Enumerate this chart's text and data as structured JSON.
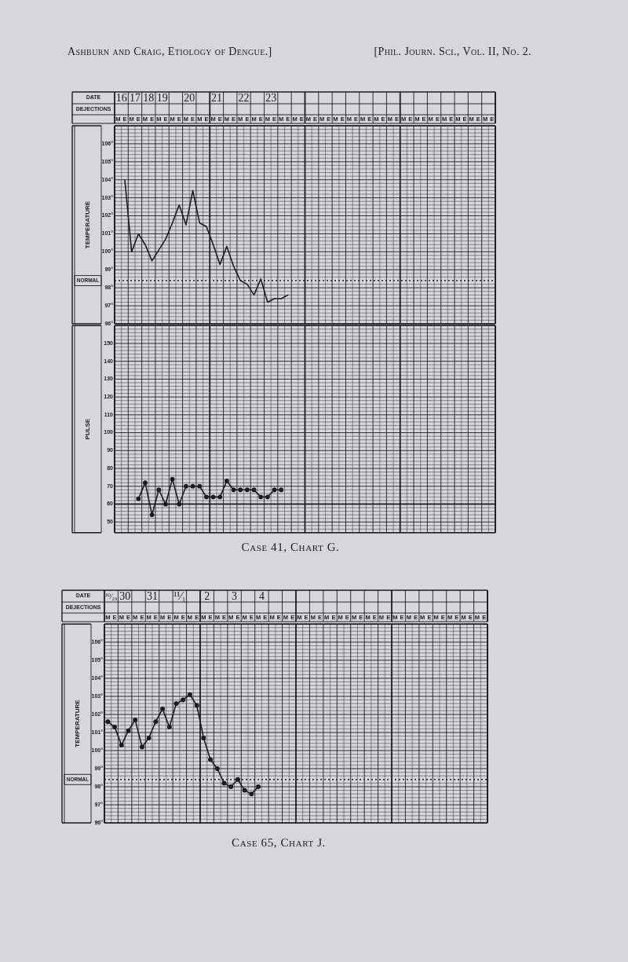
{
  "chart_data": [
    {
      "type": "line",
      "title": "Case 41, Chart G.",
      "ylabel": "TEMPERATURE",
      "annotations": [
        "Ashburn and Craig, Etiology of Dengue.]",
        "[Phil. Journ. Sci., Vol. II, No. 2.",
        "DATE",
        "16",
        "17",
        "18",
        "19",
        "20",
        "21",
        "22",
        "23",
        "DEJECTIONS"
      ],
      "categories": [
        "M",
        "E",
        "M",
        "E",
        "M",
        "E",
        "M",
        "E",
        "M",
        "E",
        "M",
        "E",
        "M",
        "E",
        "M",
        "E",
        "M",
        "E",
        "M",
        "E",
        "M",
        "E",
        "M",
        "E",
        "M",
        "E",
        "M",
        "E",
        "M",
        "E",
        "M",
        "E",
        "M",
        "E",
        "M",
        "E",
        "M",
        "E",
        "M",
        "E",
        "M",
        "E",
        "M",
        "E",
        "M",
        "E",
        "M",
        "E",
        "M",
        "E",
        "M",
        "E",
        "M",
        "E",
        "M",
        "E"
      ],
      "ylim": [
        96,
        107
      ],
      "yticks": [
        {
          "value": 96,
          "label": "96°"
        },
        {
          "value": 97,
          "label": "97°"
        },
        {
          "value": 98,
          "label": "98°"
        },
        {
          "value": 99,
          "label": "99°"
        },
        {
          "value": 100,
          "label": "100°"
        },
        {
          "value": 101,
          "label": "101°"
        },
        {
          "value": 102,
          "label": "102°"
        },
        {
          "value": 103,
          "label": "103°"
        },
        {
          "value": 104,
          "label": "104°"
        },
        {
          "value": 105,
          "label": "105°"
        },
        {
          "value": 106,
          "label": "106°"
        }
      ],
      "grid": true,
      "ref_lines": [
        {
          "axis": "y",
          "value": 98.4,
          "label": "NORMAL",
          "line_style": "dotted"
        }
      ],
      "series": [
        {
          "color": "#1c1c1c",
          "values": [
            null,
            104.0,
            100.0,
            101.0,
            100.4,
            99.5,
            100.1,
            100.7,
            101.6,
            102.6,
            101.5,
            103.4,
            101.6,
            101.4,
            100.4,
            99.3,
            100.3,
            99.2,
            98.4,
            98.2,
            97.6,
            98.5,
            97.2,
            97.4,
            97.4,
            97.6,
            null,
            null,
            null,
            null,
            null,
            null,
            null,
            null,
            null,
            null,
            null,
            null,
            null,
            null,
            null,
            null,
            null,
            null,
            null,
            null,
            null,
            null,
            null,
            null,
            null,
            null,
            null,
            null,
            null,
            null
          ]
        }
      ]
    },
    {
      "type": "line",
      "ylabel": "PULSE",
      "categories": [
        null,
        null,
        null,
        null,
        null,
        null,
        null,
        null,
        null,
        null,
        null,
        null,
        null,
        null,
        null,
        null,
        null,
        null,
        null,
        null,
        null,
        null,
        null,
        null,
        null,
        null,
        null,
        null,
        null,
        null,
        null,
        null,
        null,
        null,
        null,
        null,
        null,
        null,
        null,
        null,
        null,
        null,
        null,
        null,
        null,
        null,
        null,
        null,
        null,
        null,
        null,
        null,
        null,
        null,
        null,
        null
      ],
      "ylim": [
        44,
        160
      ],
      "yticks": [
        50,
        60,
        70,
        80,
        90,
        100,
        110,
        120,
        130,
        140,
        150
      ],
      "grid": true,
      "marker": "circle",
      "ref_lines": [
        {
          "axis": "y",
          "value": 60
        }
      ],
      "series": [
        {
          "color": "#1c1c1c",
          "values": [
            null,
            null,
            null,
            63,
            72,
            54,
            68,
            60,
            74,
            60,
            70,
            70,
            70,
            64,
            64,
            64,
            73,
            68,
            68,
            68,
            68,
            64,
            64,
            68,
            68,
            null,
            null,
            null,
            null,
            null,
            null,
            null,
            null,
            null,
            null,
            null,
            null,
            null,
            null,
            null,
            null,
            null,
            null,
            null,
            null,
            null,
            null,
            null,
            null,
            null,
            null,
            null,
            null,
            null,
            null,
            null
          ]
        }
      ]
    },
    {
      "type": "line",
      "title": "Case 65, Chart J.",
      "ylabel": "TEMPERATURE",
      "annotations": [
        "DATE",
        "¹⁰⁄₂₉",
        "30",
        "31",
        "¹¹⁄₁",
        "2",
        "3",
        "4",
        "DEJECTIONS"
      ],
      "categories": [
        "M",
        "E",
        "M",
        "E",
        "M",
        "E",
        "M",
        "E",
        "M",
        "E",
        "M",
        "E",
        "M",
        "E",
        "M",
        "E",
        "M",
        "E",
        "M",
        "E",
        "M",
        "E",
        "M",
        "E",
        "M",
        "E",
        "M",
        "E",
        "M",
        "E",
        "M",
        "E",
        "M",
        "E",
        "M",
        "E",
        "M",
        "E",
        "M",
        "E",
        "M",
        "E",
        "M",
        "E",
        "M",
        "E",
        "M",
        "E",
        "M",
        "E",
        "M",
        "E",
        "M",
        "E",
        "M",
        "E"
      ],
      "ylim": [
        96,
        107
      ],
      "yticks": [
        {
          "value": 96,
          "label": "96°"
        },
        {
          "value": 97,
          "label": "97°"
        },
        {
          "value": 98,
          "label": "98°"
        },
        {
          "value": 99,
          "label": "99°"
        },
        {
          "value": 100,
          "label": "100°"
        },
        {
          "value": 101,
          "label": "101°"
        },
        {
          "value": 102,
          "label": "102°"
        },
        {
          "value": 103,
          "label": "103°"
        },
        {
          "value": 104,
          "label": "104°"
        },
        {
          "value": 105,
          "label": "105°"
        },
        {
          "value": 106,
          "label": "106°"
        }
      ],
      "grid": true,
      "marker": "circle",
      "ref_lines": [
        {
          "axis": "y",
          "value": 98.4,
          "label": "NORMAL",
          "line_style": "dotted"
        }
      ],
      "series": [
        {
          "color": "#1c1c1c",
          "values": [
            101.6,
            101.3,
            100.3,
            101.1,
            101.7,
            100.2,
            100.7,
            101.6,
            102.3,
            101.3,
            102.6,
            102.8,
            103.1,
            102.5,
            100.7,
            99.5,
            99.0,
            98.2,
            98.0,
            98.4,
            97.8,
            97.6,
            98.0,
            null,
            null,
            null,
            null,
            null,
            null,
            null,
            null,
            null,
            null,
            null,
            null,
            null,
            null,
            null,
            null,
            null,
            null,
            null,
            null,
            null,
            null,
            null,
            null,
            null,
            null,
            null,
            null,
            null,
            null,
            null,
            null,
            null
          ]
        }
      ]
    }
  ]
}
